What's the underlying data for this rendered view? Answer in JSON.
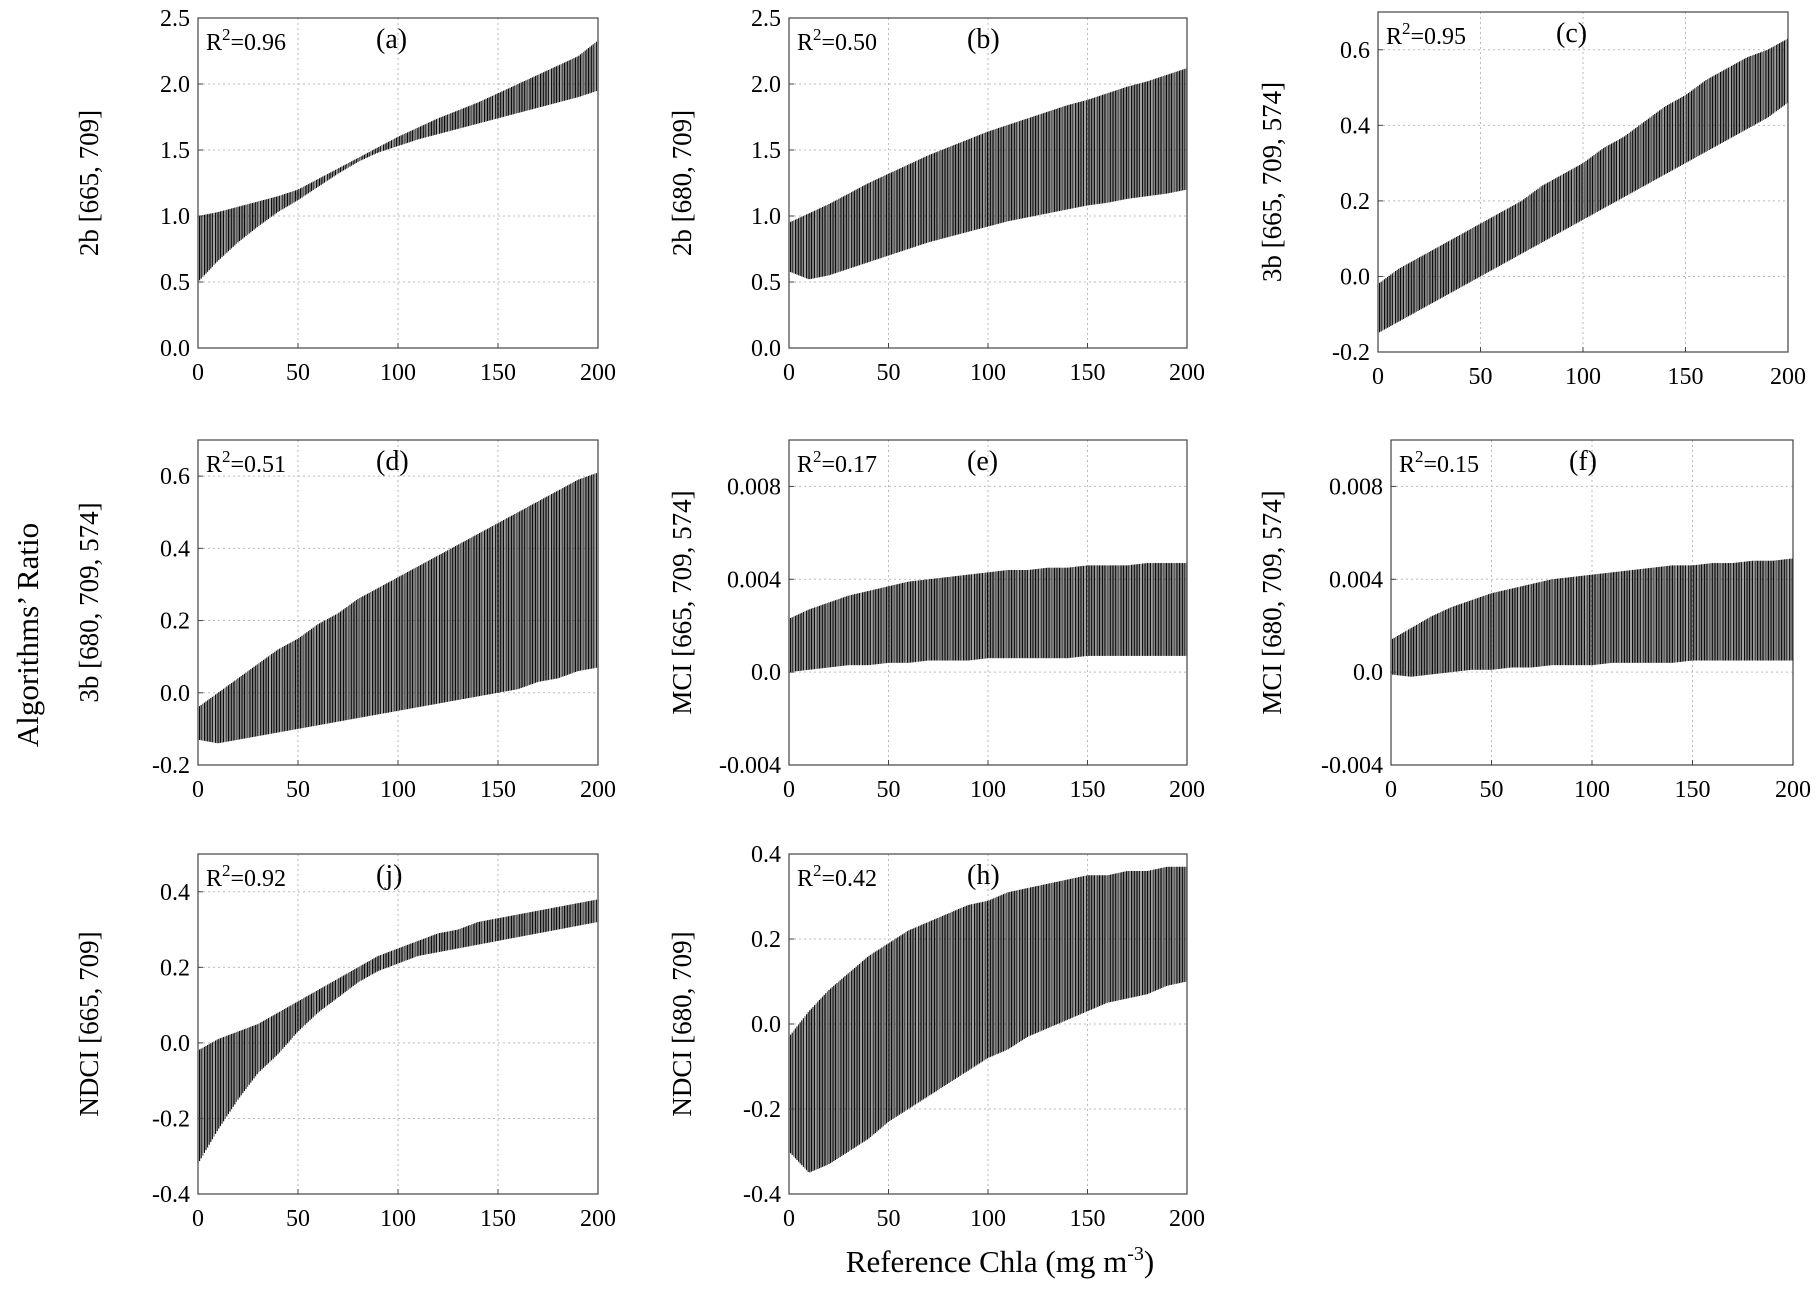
{
  "global": {
    "ylabel": "Algorithms’ Ratio",
    "xlabel_main": "Reference Chla (mg m",
    "xlabel_sup": "-3",
    "xlabel_end": ")"
  },
  "chart_data": [
    {
      "id": "a",
      "type": "area",
      "label": "(a)",
      "r2_base": "R",
      "r2_sup": "2",
      "r2_val": "=0.96",
      "ylabel": "2b [665, 709]",
      "xlim": [
        0,
        200
      ],
      "ylim": [
        0.0,
        2.5
      ],
      "xticks": [
        "0",
        "50",
        "100",
        "150",
        "200"
      ],
      "yticks": [
        "0.0",
        "0.5",
        "1.0",
        "1.5",
        "2.0",
        "2.5"
      ],
      "x": [
        0,
        10,
        20,
        30,
        40,
        50,
        60,
        70,
        80,
        90,
        100,
        110,
        120,
        130,
        140,
        150,
        160,
        170,
        180,
        190,
        200
      ],
      "lower": [
        0.5,
        0.66,
        0.8,
        0.92,
        1.03,
        1.12,
        1.22,
        1.32,
        1.41,
        1.48,
        1.53,
        1.58,
        1.62,
        1.66,
        1.7,
        1.74,
        1.78,
        1.82,
        1.86,
        1.9,
        1.95
      ],
      "upper": [
        1.0,
        1.03,
        1.07,
        1.11,
        1.15,
        1.2,
        1.28,
        1.36,
        1.44,
        1.52,
        1.6,
        1.67,
        1.74,
        1.8,
        1.86,
        1.93,
        2.0,
        2.07,
        2.14,
        2.21,
        2.33
      ]
    },
    {
      "id": "b",
      "type": "area",
      "label": "(b)",
      "r2_base": "R",
      "r2_sup": "2",
      "r2_val": "=0.50",
      "ylabel": "2b [680, 709]",
      "xlim": [
        0,
        200
      ],
      "ylim": [
        0.0,
        2.5
      ],
      "xticks": [
        "0",
        "50",
        "100",
        "150",
        "200"
      ],
      "yticks": [
        "0.0",
        "0.5",
        "1.0",
        "1.5",
        "2.0",
        "2.5"
      ],
      "x": [
        0,
        10,
        20,
        30,
        40,
        50,
        60,
        70,
        80,
        90,
        100,
        110,
        120,
        130,
        140,
        150,
        160,
        170,
        180,
        190,
        200
      ],
      "lower": [
        0.58,
        0.52,
        0.55,
        0.6,
        0.65,
        0.7,
        0.75,
        0.8,
        0.84,
        0.88,
        0.92,
        0.96,
        0.99,
        1.02,
        1.05,
        1.08,
        1.1,
        1.13,
        1.15,
        1.17,
        1.2
      ],
      "upper": [
        0.95,
        1.02,
        1.09,
        1.17,
        1.25,
        1.32,
        1.39,
        1.46,
        1.52,
        1.58,
        1.64,
        1.69,
        1.74,
        1.79,
        1.84,
        1.88,
        1.93,
        1.98,
        2.02,
        2.07,
        2.12
      ]
    },
    {
      "id": "c",
      "type": "area",
      "label": "(c)",
      "r2_base": "R",
      "r2_sup": "2",
      "r2_val": "=0.95",
      "ylabel": "3b [665, 709, 574]",
      "xlim": [
        0,
        200
      ],
      "ylim": [
        -0.2,
        0.7
      ],
      "xticks": [
        "0",
        "50",
        "100",
        "150",
        "200"
      ],
      "yticks": [
        "-0.2",
        "0.0",
        "0.2",
        "0.4",
        "0.6"
      ],
      "x": [
        0,
        10,
        20,
        30,
        40,
        50,
        60,
        70,
        80,
        90,
        100,
        110,
        120,
        130,
        140,
        150,
        160,
        170,
        180,
        190,
        200
      ],
      "lower": [
        -0.15,
        -0.12,
        -0.09,
        -0.06,
        -0.03,
        0.0,
        0.03,
        0.06,
        0.09,
        0.12,
        0.15,
        0.18,
        0.21,
        0.24,
        0.27,
        0.3,
        0.33,
        0.36,
        0.39,
        0.42,
        0.46
      ],
      "upper": [
        -0.02,
        0.02,
        0.05,
        0.08,
        0.11,
        0.14,
        0.17,
        0.2,
        0.24,
        0.27,
        0.3,
        0.34,
        0.37,
        0.41,
        0.45,
        0.48,
        0.52,
        0.55,
        0.58,
        0.6,
        0.63
      ]
    },
    {
      "id": "d",
      "type": "area",
      "label": "(d)",
      "r2_base": "R",
      "r2_sup": "2",
      "r2_val": "=0.51",
      "ylabel": "3b [680, 709, 574]",
      "xlim": [
        0,
        200
      ],
      "ylim": [
        -0.2,
        0.7
      ],
      "xticks": [
        "0",
        "50",
        "100",
        "150",
        "200"
      ],
      "yticks": [
        "-0.2",
        "0.0",
        "0.2",
        "0.4",
        "0.6"
      ],
      "x": [
        0,
        10,
        20,
        30,
        40,
        50,
        60,
        70,
        80,
        90,
        100,
        110,
        120,
        130,
        140,
        150,
        160,
        170,
        180,
        190,
        200
      ],
      "lower": [
        -0.13,
        -0.14,
        -0.13,
        -0.12,
        -0.11,
        -0.1,
        -0.09,
        -0.08,
        -0.07,
        -0.06,
        -0.05,
        -0.04,
        -0.03,
        -0.02,
        -0.01,
        0.0,
        0.01,
        0.03,
        0.04,
        0.06,
        0.07
      ],
      "upper": [
        -0.04,
        0.0,
        0.04,
        0.08,
        0.12,
        0.15,
        0.19,
        0.22,
        0.26,
        0.29,
        0.32,
        0.35,
        0.38,
        0.41,
        0.44,
        0.47,
        0.5,
        0.53,
        0.56,
        0.59,
        0.61
      ]
    },
    {
      "id": "e",
      "type": "area",
      "label": "(e)",
      "r2_base": "R",
      "r2_sup": "2",
      "r2_val": "=0.17",
      "ylabel": "MCI [665, 709, 574]",
      "xlim": [
        0,
        200
      ],
      "ylim": [
        -0.004,
        0.01
      ],
      "xticks": [
        "0",
        "50",
        "100",
        "150",
        "200"
      ],
      "yticks": [
        "-0.004",
        "0.0",
        "0.004",
        "0.008"
      ],
      "ytick_values": [
        -0.004,
        0.0,
        0.004,
        0.008
      ],
      "x": [
        0,
        10,
        20,
        30,
        40,
        50,
        60,
        70,
        80,
        90,
        100,
        110,
        120,
        130,
        140,
        150,
        160,
        170,
        180,
        190,
        200
      ],
      "lower": [
        0.0,
        0.0001,
        0.0002,
        0.0003,
        0.0003,
        0.0004,
        0.0004,
        0.0005,
        0.0005,
        0.0005,
        0.0006,
        0.0006,
        0.0006,
        0.0006,
        0.0006,
        0.0007,
        0.0007,
        0.0007,
        0.0007,
        0.0007,
        0.0007
      ],
      "upper": [
        0.0023,
        0.0027,
        0.003,
        0.0033,
        0.0035,
        0.0037,
        0.0039,
        0.004,
        0.0041,
        0.0042,
        0.0043,
        0.0044,
        0.0044,
        0.0045,
        0.0045,
        0.0046,
        0.0046,
        0.0046,
        0.0047,
        0.0047,
        0.0047
      ]
    },
    {
      "id": "f",
      "type": "area",
      "label": "(f)",
      "r2_base": "R",
      "r2_sup": "2",
      "r2_val": "=0.15",
      "ylabel": "MCI [680, 709, 574]",
      "xlim": [
        0,
        200
      ],
      "ylim": [
        -0.004,
        0.01
      ],
      "xticks": [
        "0",
        "50",
        "100",
        "150",
        "200"
      ],
      "yticks": [
        "-0.004",
        "0.0",
        "0.004",
        "0.008"
      ],
      "ytick_values": [
        -0.004,
        0.0,
        0.004,
        0.008
      ],
      "x": [
        0,
        10,
        20,
        30,
        40,
        50,
        60,
        70,
        80,
        90,
        100,
        110,
        120,
        130,
        140,
        150,
        160,
        170,
        180,
        190,
        200
      ],
      "lower": [
        -0.0001,
        -0.0002,
        -0.0001,
        0.0,
        0.0001,
        0.0001,
        0.0002,
        0.0002,
        0.0003,
        0.0003,
        0.0003,
        0.0004,
        0.0004,
        0.0004,
        0.0004,
        0.0005,
        0.0005,
        0.0005,
        0.0005,
        0.0005,
        0.0005
      ],
      "upper": [
        0.0014,
        0.0019,
        0.0024,
        0.0028,
        0.0031,
        0.0034,
        0.0036,
        0.0038,
        0.004,
        0.0041,
        0.0042,
        0.0043,
        0.0044,
        0.0045,
        0.0046,
        0.0046,
        0.0047,
        0.0047,
        0.0048,
        0.0048,
        0.0049
      ]
    },
    {
      "id": "j",
      "type": "area",
      "label": "(j)",
      "r2_base": "R",
      "r2_sup": "2",
      "r2_val": "=0.92",
      "ylabel": "NDCI [665, 709]",
      "xlim": [
        0,
        200
      ],
      "ylim": [
        -0.4,
        0.5
      ],
      "xticks": [
        "0",
        "50",
        "100",
        "150",
        "200"
      ],
      "yticks": [
        "-0.4",
        "-0.2",
        "0.0",
        "0.2",
        "0.4"
      ],
      "x": [
        0,
        10,
        20,
        30,
        40,
        50,
        60,
        70,
        80,
        90,
        100,
        110,
        120,
        130,
        140,
        150,
        160,
        170,
        180,
        190,
        200
      ],
      "lower": [
        -0.32,
        -0.23,
        -0.15,
        -0.08,
        -0.03,
        0.03,
        0.08,
        0.12,
        0.16,
        0.19,
        0.21,
        0.23,
        0.24,
        0.25,
        0.26,
        0.27,
        0.28,
        0.29,
        0.3,
        0.31,
        0.32
      ],
      "upper": [
        -0.02,
        0.01,
        0.03,
        0.05,
        0.08,
        0.11,
        0.14,
        0.17,
        0.2,
        0.23,
        0.25,
        0.27,
        0.29,
        0.3,
        0.32,
        0.33,
        0.34,
        0.35,
        0.36,
        0.37,
        0.38
      ]
    },
    {
      "id": "h",
      "type": "area",
      "label": "(h)",
      "r2_base": "R",
      "r2_sup": "2",
      "r2_val": "=0.42",
      "ylabel": "NDCI [680, 709]",
      "xlim": [
        0,
        200
      ],
      "ylim": [
        -0.4,
        0.4
      ],
      "xticks": [
        "0",
        "50",
        "100",
        "150",
        "200"
      ],
      "yticks": [
        "-0.4",
        "-0.2",
        "0.0",
        "0.2",
        "0.4"
      ],
      "x": [
        0,
        10,
        20,
        30,
        40,
        50,
        60,
        70,
        80,
        90,
        100,
        110,
        120,
        130,
        140,
        150,
        160,
        170,
        180,
        190,
        200
      ],
      "lower": [
        -0.3,
        -0.35,
        -0.33,
        -0.3,
        -0.27,
        -0.23,
        -0.2,
        -0.17,
        -0.14,
        -0.11,
        -0.08,
        -0.06,
        -0.03,
        -0.01,
        0.01,
        0.03,
        0.05,
        0.06,
        0.07,
        0.09,
        0.1
      ],
      "upper": [
        -0.03,
        0.03,
        0.08,
        0.12,
        0.16,
        0.19,
        0.22,
        0.24,
        0.26,
        0.28,
        0.29,
        0.31,
        0.32,
        0.33,
        0.34,
        0.35,
        0.35,
        0.36,
        0.36,
        0.37,
        0.37
      ]
    }
  ]
}
